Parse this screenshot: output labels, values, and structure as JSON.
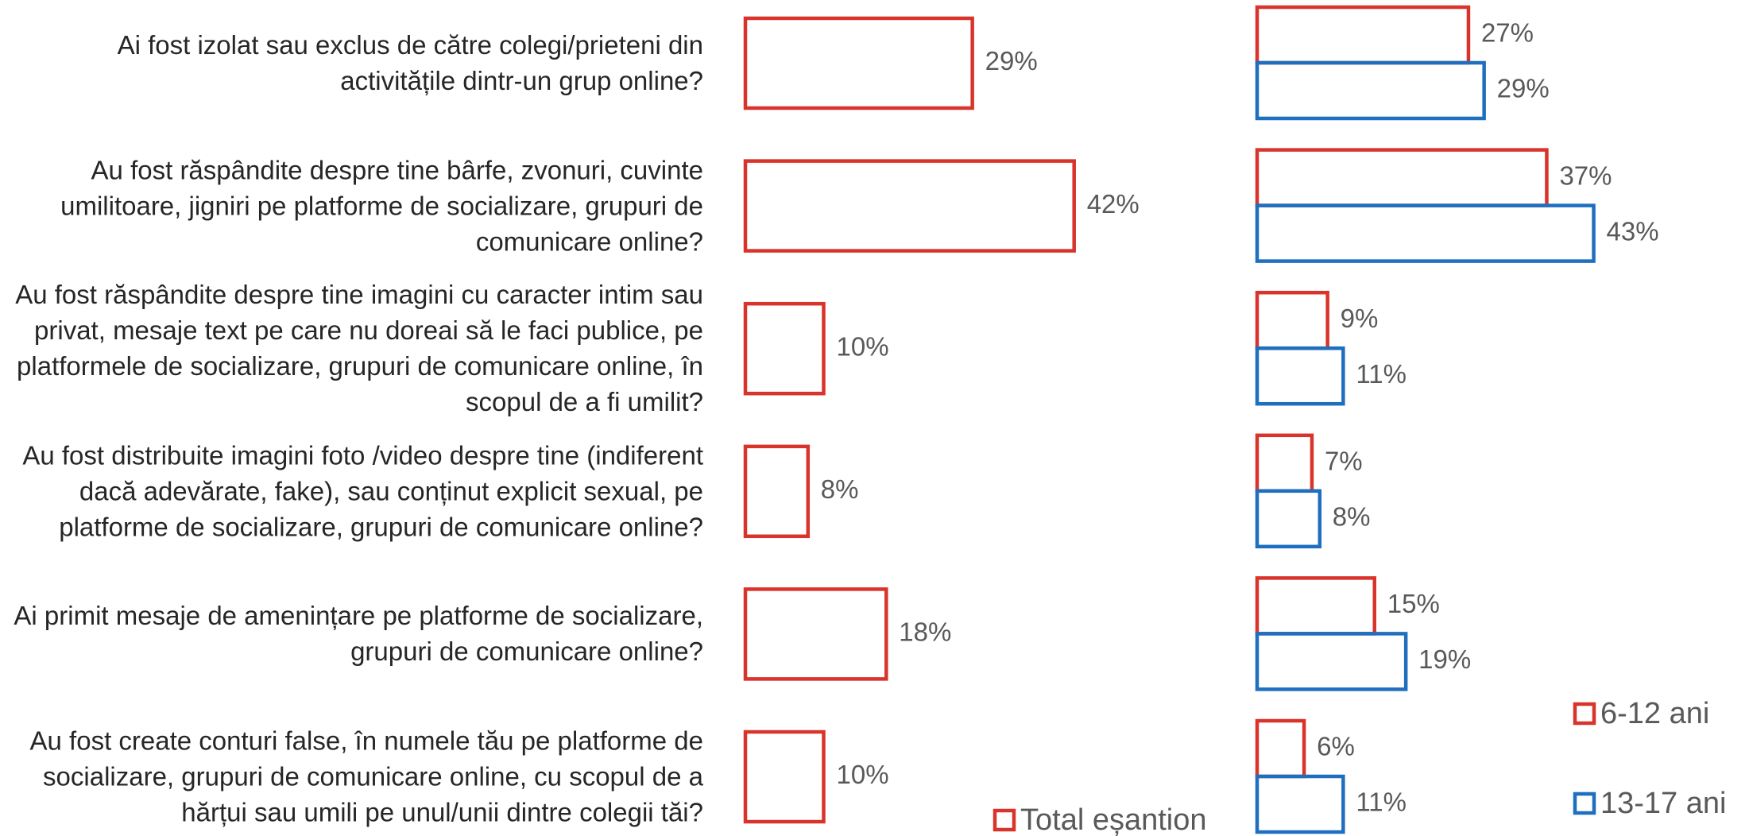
{
  "chart_data": [
    {
      "type": "bar",
      "orientation": "horizontal",
      "categories": [
        "Ai fost izolat sau exclus de către colegi/prieteni din activitățile dintr-un grup online?",
        "Au fost răspândite despre tine bârfe, zvonuri, cuvinte umilitoare, jigniri pe platforme de socializare, grupuri de comunicare online?",
        "Au fost răspândite despre tine imagini cu caracter intim sau privat, mesaje text pe care nu doreai să le faci publice, pe platformele de socializare, grupuri de comunicare online, în scopul de a fi umilit?",
        "Au fost distribuite imagini foto /video despre tine (indiferent dacă adevărate, fake), sau conținut explicit sexual, pe platforme de socializare, grupuri de comunicare online?",
        "Ai primit mesaje de amenințare pe platforme de socializare, grupuri de comunicare online?",
        "Au fost create conturi false, în numele tău pe platforme de socializare, grupuri de comunicare online, cu scopul de a hărțui sau umili pe unul/unii dintre colegii tăi?"
      ],
      "series": [
        {
          "name": "Total eșantion",
          "color": "#d9342b",
          "values": [
            29,
            42,
            10,
            8,
            18,
            10
          ],
          "value_labels": [
            "29%",
            "42%",
            "10%",
            "8%",
            "18%",
            "10%"
          ]
        }
      ]
    },
    {
      "type": "bar",
      "orientation": "horizontal",
      "series": [
        {
          "name": "6-12 ani",
          "color": "#d9342b",
          "values": [
            27,
            37,
            9,
            7,
            15,
            6
          ],
          "value_labels": [
            "27%",
            "37%",
            "9%",
            "7%",
            "15%",
            "6%"
          ]
        },
        {
          "name": "13-17 ani",
          "color": "#1f6fbf",
          "values": [
            29,
            43,
            11,
            8,
            19,
            11
          ],
          "value_labels": [
            "29%",
            "43%",
            "11%",
            "8%",
            "19%",
            "11%"
          ]
        }
      ]
    }
  ]
}
